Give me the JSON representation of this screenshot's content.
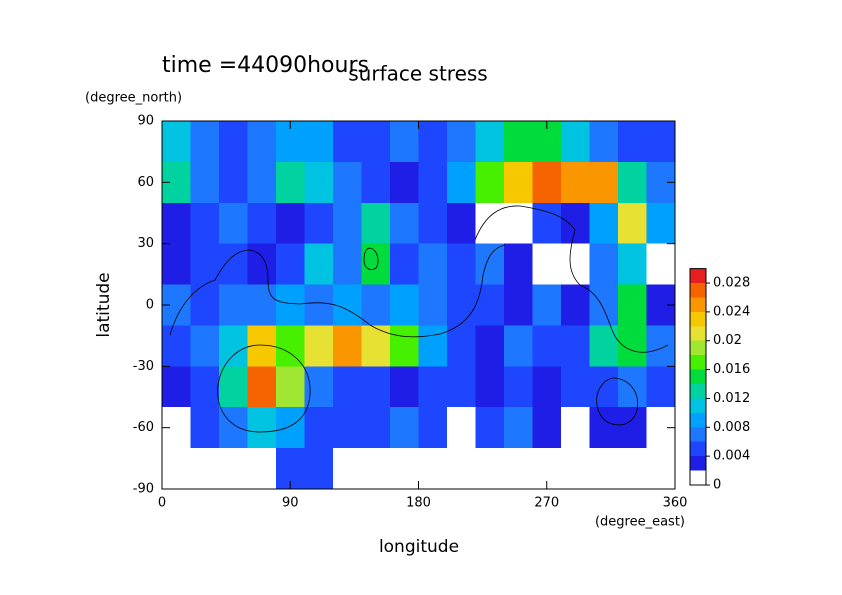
{
  "chart_data": {
    "type": "contour",
    "title": "surface stress",
    "subtitle": "time =44090hours",
    "xlabel": "longitude",
    "xunits": "(degree_east)",
    "ylabel": "latitude",
    "yunits": "(degree_north)",
    "x": [
      10,
      30,
      50,
      70,
      90,
      110,
      130,
      150,
      170,
      190,
      210,
      230,
      250,
      270,
      290,
      310,
      330,
      350
    ],
    "y": [
      80,
      60,
      40,
      20,
      0,
      -20,
      -40,
      -60,
      -80
    ],
    "z": [
      [
        0.01,
        0.006,
        0.004,
        0.006,
        0.008,
        0.008,
        0.004,
        0.004,
        0.006,
        0.004,
        0.006,
        0.01,
        0.014,
        0.014,
        0.01,
        0.006,
        0.004,
        0.004
      ],
      [
        0.012,
        0.006,
        0.004,
        0.006,
        0.012,
        0.01,
        0.006,
        0.004,
        0.002,
        0.004,
        0.008,
        0.016,
        0.022,
        0.026,
        0.024,
        0.024,
        0.012,
        0.006
      ],
      [
        0.002,
        0.004,
        0.006,
        0.004,
        0.002,
        0.004,
        0.006,
        0.012,
        0.006,
        0.004,
        0.002,
        0,
        0,
        0.004,
        0.002,
        0.008,
        0.02,
        0.008
      ],
      [
        0.002,
        0.004,
        0.004,
        0.002,
        0.004,
        0.01,
        0.006,
        0.014,
        0.004,
        0.006,
        0.004,
        0.006,
        0.002,
        0,
        0,
        0.006,
        0.01,
        0
      ],
      [
        0.006,
        0.004,
        0.006,
        0.006,
        0.008,
        0.006,
        0.008,
        0.006,
        0.008,
        0.006,
        0.004,
        0.004,
        0.002,
        0.006,
        0.002,
        0.006,
        0.014,
        0.002
      ],
      [
        0.004,
        0.006,
        0.01,
        0.022,
        0.016,
        0.02,
        0.024,
        0.02,
        0.016,
        0.008,
        0.004,
        0.002,
        0.006,
        0.004,
        0.004,
        0.012,
        0.014,
        0.006
      ],
      [
        0.002,
        0.004,
        0.012,
        0.026,
        0.018,
        0.006,
        0.004,
        0.004,
        0.002,
        0.004,
        0.004,
        0.002,
        0.004,
        0.002,
        0.004,
        0.004,
        0.006,
        0.004
      ],
      [
        0,
        0.004,
        0.006,
        0.01,
        0.008,
        0.004,
        0.004,
        0.004,
        0.006,
        0.004,
        0,
        0.004,
        0.006,
        0.002,
        0,
        0.002,
        0.002,
        0
      ],
      [
        0,
        0,
        0,
        0,
        0.004,
        0.004,
        0,
        0,
        0,
        0,
        0,
        0,
        0,
        0,
        0,
        0,
        0,
        0
      ]
    ],
    "xlim": [
      0,
      360
    ],
    "xticks": [
      0,
      90,
      180,
      270,
      360
    ],
    "ylim": [
      -90,
      90
    ],
    "yticks": [
      -90,
      -60,
      -30,
      0,
      30,
      60,
      90
    ],
    "levels": [
      0,
      0.002,
      0.004,
      0.006,
      0.008,
      0.01,
      0.012,
      0.014,
      0.016,
      0.018,
      0.02,
      0.022,
      0.024,
      0.026,
      0.028,
      0.03
    ],
    "colors": [
      "#ffffff",
      "#1e1ee6",
      "#1e46ff",
      "#1e78ff",
      "#00a0ff",
      "#00c3e1",
      "#00d2a0",
      "#00dc3c",
      "#46f000",
      "#a0e632",
      "#e6e132",
      "#f5c800",
      "#fa9600",
      "#f56400",
      "#e61e1e"
    ],
    "colorbar_ticks": [
      0,
      0.004,
      0.008,
      0.012,
      0.016,
      0.02,
      0.024,
      0.028
    ]
  }
}
